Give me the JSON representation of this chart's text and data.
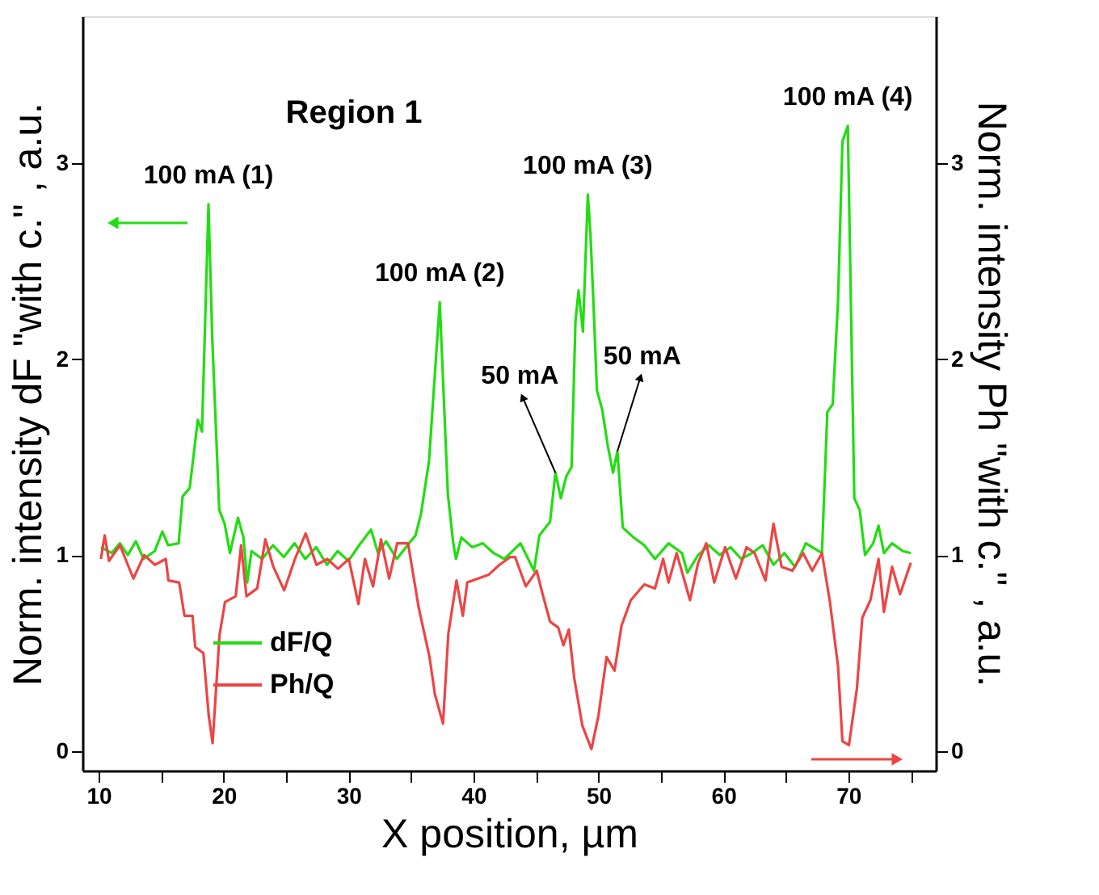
{
  "chart_data": {
    "type": "line",
    "xlabel": "X position, µm",
    "ylabel": "Norm. intensity dF \"with c.\" , a.u.",
    "y2label": "Norm. intensity Ph \"with c.\" , a.u.",
    "xlim": [
      8.7,
      77
    ],
    "ylim": [
      -0.1,
      3.75
    ],
    "y2lim": [
      -0.1,
      3.75
    ],
    "xticks": [
      10,
      {
        "value": 15,
        "label": null
      },
      20,
      {
        "value": 25,
        "label": null
      },
      30,
      {
        "value": 35,
        "label": null
      },
      40,
      {
        "value": 45,
        "label": null
      },
      50,
      {
        "value": 55,
        "label": null
      },
      60,
      {
        "value": 65,
        "label": null
      },
      70,
      {
        "value": 75,
        "label": null
      }
    ],
    "yticks": [
      0,
      1,
      2,
      3
    ],
    "y2ticks": [
      0,
      1,
      2,
      3
    ],
    "grid": false,
    "legend": "bottom left",
    "marker": "none",
    "line_style": "solid",
    "annotations": [
      "Region 1",
      {
        "text": "100 mA (1)",
        "x": 18.79,
        "y": 2.79
      },
      {
        "text": "100 mA (2)",
        "x": 37.3,
        "y": 2.29
      },
      {
        "text": "100 mA (3)",
        "x": 49.15,
        "y": 2.84
      },
      {
        "text": "100 mA (4)",
        "x": 69.96,
        "y": 3.19
      },
      {
        "text": "50 mA",
        "x": 46.56,
        "y": 1.42
      },
      {
        "text": "50 mA",
        "x": 51.52,
        "y": 1.53
      }
    ],
    "series": [
      {
        "name": "dF/Q",
        "color": "#22dd11",
        "axis": "y",
        "x": [
          10.18,
          11.04,
          11.7,
          12.33,
          12.97,
          13.6,
          14.48,
          15.1,
          15.56,
          16.4,
          16.72,
          17.28,
          17.58,
          17.93,
          18.27,
          18.79,
          19.09,
          19.65,
          20.08,
          20.51,
          21.15,
          21.59,
          21.89,
          22.23,
          23.09,
          23.95,
          24.82,
          25.68,
          26.54,
          27.41,
          28.27,
          29.13,
          29.99,
          30.85,
          31.8,
          32.36,
          33.0,
          33.86,
          34.72,
          35.36,
          35.8,
          36.44,
          37.3,
          37.95,
          38.38,
          38.6,
          39.03,
          39.89,
          40.75,
          41.61,
          42.47,
          43.76,
          44.84,
          45.27,
          46.13,
          46.56,
          46.99,
          47.42,
          47.85,
          48.16,
          48.41,
          48.76,
          49.15,
          49.36,
          49.58,
          49.88,
          50.31,
          50.74,
          51.17,
          51.52,
          51.95,
          52.81,
          53.67,
          54.53,
          55.61,
          56.69,
          57.12,
          57.98,
          58.84,
          59.71,
          60.57,
          61.43,
          62.29,
          63.15,
          64.01,
          64.88,
          65.74,
          66.6,
          67.89,
          68.32,
          68.75,
          69.18,
          69.53,
          69.96,
          70.48,
          70.91,
          71.34,
          71.99,
          72.42,
          72.85,
          73.5,
          74.36,
          75.0
        ],
        "values": [
          1.04,
          1.01,
          1.06,
          1.0,
          1.07,
          0.98,
          1.02,
          1.12,
          1.05,
          1.06,
          1.3,
          1.34,
          1.5,
          1.69,
          1.63,
          2.79,
          2.11,
          1.23,
          1.16,
          1.01,
          1.19,
          1.09,
          0.86,
          1.02,
          0.98,
          1.05,
          0.99,
          1.06,
          0.98,
          1.04,
          0.95,
          1.02,
          0.97,
          1.05,
          1.13,
          1.01,
          1.07,
          0.98,
          1.05,
          1.1,
          1.21,
          1.48,
          2.29,
          1.31,
          1.06,
          0.98,
          1.09,
          1.04,
          1.06,
          1.01,
          0.98,
          1.06,
          0.92,
          1.1,
          1.17,
          1.42,
          1.29,
          1.4,
          1.45,
          2.19,
          2.35,
          2.14,
          2.84,
          2.64,
          2.32,
          1.84,
          1.74,
          1.56,
          1.42,
          1.53,
          1.14,
          1.09,
          1.05,
          0.98,
          1.06,
          1.01,
          0.91,
          1.0,
          1.05,
          1.0,
          1.04,
          0.98,
          1.01,
          1.05,
          0.95,
          1.01,
          0.94,
          1.06,
          1.01,
          1.73,
          1.77,
          2.3,
          3.11,
          3.19,
          1.29,
          1.23,
          1.0,
          1.06,
          1.15,
          1.01,
          1.06,
          1.02,
          1.01
        ]
      },
      {
        "name": "Ph/Q",
        "color": "#ee4444",
        "axis": "y2",
        "x": [
          10.18,
          10.48,
          10.83,
          11.7,
          12.78,
          13.64,
          14.5,
          15.37,
          15.58,
          16.44,
          16.87,
          17.51,
          17.73,
          18.38,
          18.81,
          19.12,
          19.67,
          20.11,
          20.97,
          21.4,
          21.83,
          22.69,
          23.34,
          23.98,
          24.85,
          25.71,
          26.57,
          27.43,
          28.3,
          29.16,
          30.02,
          30.79,
          31.31,
          31.96,
          32.6,
          33.25,
          33.89,
          34.76,
          35.62,
          36.48,
          36.91,
          37.56,
          37.99,
          38.64,
          39.15,
          39.5,
          40.36,
          41.22,
          42.08,
          42.95,
          43.33,
          44.19,
          45.06,
          45.49,
          46.13,
          46.78,
          47.2,
          47.63,
          48.07,
          48.71,
          49.44,
          50.0,
          50.65,
          51.29,
          51.85,
          52.59,
          53.67,
          54.53,
          55.18,
          55.61,
          56.26,
          57.33,
          57.98,
          58.63,
          59.27,
          60.14,
          61.0,
          61.86,
          62.5,
          63.37,
          64.01,
          64.66,
          65.52,
          66.38,
          67.11,
          67.89,
          68.53,
          69.18,
          69.53,
          70.05,
          70.69,
          71.12,
          71.77,
          72.42,
          72.85,
          73.5,
          74.14,
          75.0
        ],
        "values": [
          0.98,
          1.1,
          0.97,
          1.05,
          0.88,
          1.0,
          0.95,
          0.98,
          0.87,
          0.86,
          0.69,
          0.69,
          0.53,
          0.5,
          0.18,
          0.04,
          0.59,
          0.76,
          0.79,
          1.05,
          0.79,
          0.83,
          1.08,
          0.94,
          0.82,
          0.98,
          1.11,
          0.95,
          0.98,
          0.93,
          0.98,
          0.75,
          0.98,
          0.84,
          1.08,
          0.88,
          1.06,
          1.06,
          0.73,
          0.48,
          0.29,
          0.14,
          0.6,
          0.87,
          0.69,
          0.86,
          0.88,
          0.9,
          0.95,
          0.99,
          0.99,
          0.84,
          0.92,
          0.81,
          0.66,
          0.63,
          0.54,
          0.62,
          0.37,
          0.13,
          0.01,
          0.18,
          0.48,
          0.41,
          0.64,
          0.77,
          0.85,
          0.83,
          0.98,
          0.86,
          1.01,
          0.77,
          0.96,
          1.06,
          0.86,
          1.04,
          0.88,
          1.04,
          1.01,
          0.87,
          1.16,
          0.94,
          0.92,
          1.01,
          0.92,
          1.01,
          0.76,
          0.43,
          0.05,
          0.03,
          0.32,
          0.68,
          0.77,
          0.98,
          0.71,
          0.94,
          0.8,
          0.96
        ]
      }
    ]
  }
}
